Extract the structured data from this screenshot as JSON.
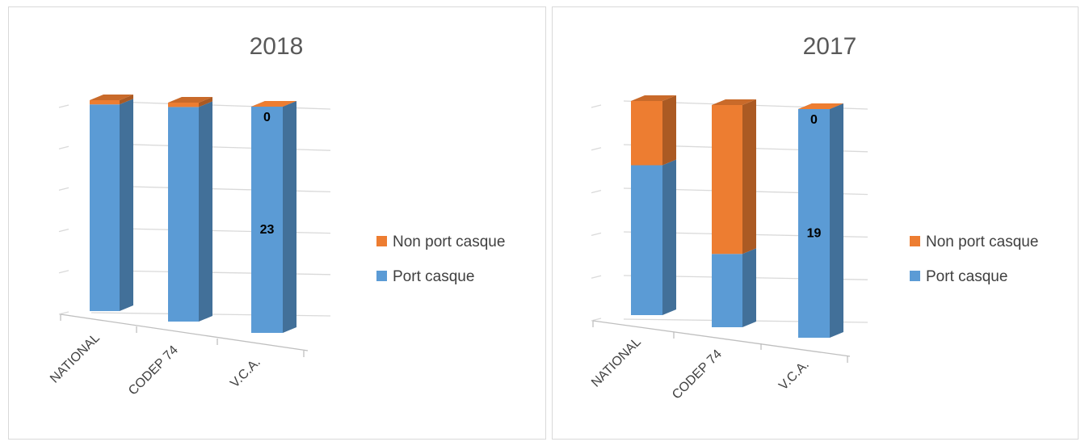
{
  "colors": {
    "port_casque": "#5b9bd5",
    "non_port_casque": "#ed7d31",
    "grid": "#d9d9d9",
    "axis": "#bfbfbf"
  },
  "chart_data": [
    {
      "type": "bar",
      "stacked": true,
      "title": "2018",
      "categories": [
        "NATIONAL",
        "CODEP 74",
        "V.C.A."
      ],
      "series": [
        {
          "name": "Port casque",
          "values": [
            98,
            98,
            100
          ],
          "data_labels": [
            "",
            "",
            "23"
          ]
        },
        {
          "name": "Non port casque",
          "values": [
            2,
            2,
            0
          ],
          "data_labels": [
            "",
            "",
            "0"
          ]
        }
      ],
      "ylim": [
        0,
        100
      ],
      "grid": true,
      "legend_position": "right"
    },
    {
      "type": "bar",
      "stacked": true,
      "title": "2017",
      "categories": [
        "NATIONAL",
        "CODEP 74",
        "V.C.A."
      ],
      "series": [
        {
          "name": "Port casque",
          "values": [
            70,
            33,
            100
          ],
          "data_labels": [
            "",
            "",
            "19"
          ]
        },
        {
          "name": "Non port casque",
          "values": [
            30,
            67,
            0
          ],
          "data_labels": [
            "",
            "",
            "0"
          ]
        }
      ],
      "ylim": [
        0,
        100
      ],
      "grid": true,
      "legend_position": "right"
    }
  ]
}
